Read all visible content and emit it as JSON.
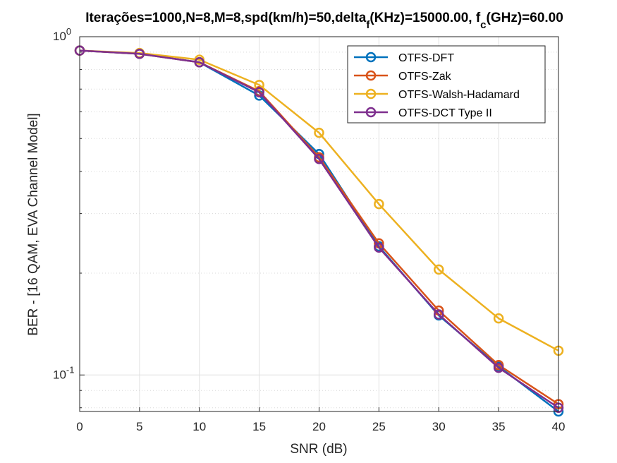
{
  "chart_data": {
    "type": "line",
    "title": {
      "p1": "Iterações=1000,N=8,M=8,spd(km/h)=50,delta",
      "sub1": "f",
      "p2": "(KHz)=15000.00, f",
      "sub2": "c",
      "p3": "(GHz)=60.00"
    },
    "xlabel": "SNR (dB)",
    "ylabel": "BER - [16 QAM, EVA Channel Model]",
    "xlim": [
      0,
      40
    ],
    "ylim": [
      0.078,
      1.0
    ],
    "yscale": "log",
    "grid": true,
    "legend_position": "top-right",
    "x": [
      0,
      5,
      10,
      15,
      20,
      25,
      30,
      35,
      40
    ],
    "x_ticks": [
      {
        "value": 0,
        "label": "0"
      },
      {
        "value": 5,
        "label": "5"
      },
      {
        "value": 10,
        "label": "10"
      },
      {
        "value": 15,
        "label": "15"
      },
      {
        "value": 20,
        "label": "20"
      },
      {
        "value": 25,
        "label": "25"
      },
      {
        "value": 30,
        "label": "30"
      },
      {
        "value": 35,
        "label": "35"
      },
      {
        "value": 40,
        "label": "40"
      }
    ],
    "y_major_ticks": [
      {
        "value": 0.1,
        "base": "10",
        "exp": "-1"
      },
      {
        "value": 1.0,
        "base": "10",
        "exp": "0"
      }
    ],
    "series": [
      {
        "name": "OTFS-DFT",
        "color": "#0072BD",
        "values": [
          0.91,
          0.89,
          0.84,
          0.67,
          0.45,
          0.24,
          0.15,
          0.106,
          0.078
        ]
      },
      {
        "name": "OTFS-Zak",
        "color": "#D95319",
        "values": [
          0.91,
          0.89,
          0.84,
          0.69,
          0.44,
          0.245,
          0.155,
          0.107,
          0.082
        ]
      },
      {
        "name": "OTFS-Walsh-Hadamard",
        "color": "#EDB120",
        "values": [
          0.91,
          0.895,
          0.855,
          0.72,
          0.52,
          0.32,
          0.205,
          0.147,
          0.118
        ]
      },
      {
        "name": "OTFS-DCT Type II",
        "color": "#7E2F8E",
        "values": [
          0.91,
          0.89,
          0.84,
          0.685,
          0.435,
          0.238,
          0.151,
          0.105,
          0.08
        ]
      }
    ]
  }
}
